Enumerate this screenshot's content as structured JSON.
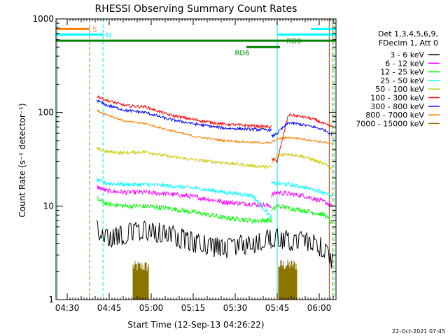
{
  "chart_data": {
    "type": "line",
    "title": "RHESSI Observing Summary Count Rates",
    "xlabel": "Start Time (12-Sep-13 04:26:22)",
    "ylabel": "Count Rate (s⁻¹ detector⁻¹)",
    "yscale": "log",
    "ylim": [
      1,
      1000
    ],
    "xlim_minutes_after_0426": [
      0,
      100
    ],
    "x_ticks": [
      "04:30",
      "04:45",
      "05:00",
      "05:15",
      "05:30",
      "05:45",
      "06:00"
    ],
    "y_ticks": [
      "1",
      "10",
      "100",
      "1000"
    ],
    "footer": "22-Oct-2021 07:45",
    "legend": {
      "header_line1": "Det 1,3,4,5,6,9,",
      "header_line2": "FDecim 1, Att 0",
      "placement": "right",
      "entries": [
        {
          "label": "3 - 6 keV",
          "color": "#000000"
        },
        {
          "label": "6 - 12 keV",
          "color": "#ff00ff"
        },
        {
          "label": "12 - 25 keV",
          "color": "#00ff00"
        },
        {
          "label": "25 - 50 keV",
          "color": "#00ffff"
        },
        {
          "label": "50 - 100 keV",
          "color": "#c8c800"
        },
        {
          "label": "100 - 300 keV",
          "color": "#ff0000"
        },
        {
          "label": "300 - 800 keV",
          "color": "#0000ff"
        },
        {
          "label": "800 - 7000 keV",
          "color": "#ff7f00"
        },
        {
          "label": "7000 - 15000 keV",
          "color": "#8b7500"
        }
      ]
    },
    "series": [
      {
        "name": "3 - 6 keV",
        "color": "#000000",
        "noise": 0.18,
        "segments": [
          {
            "t": [
              14.5,
              18,
              25,
              32,
              40,
              50,
              60,
              70,
              77
            ],
            "v": [
              6,
              4.5,
              5,
              5.5,
              5,
              4,
              3.5,
              4,
              4.5
            ]
          },
          {
            "t": [
              77,
              79,
              83,
              88,
              92,
              96,
              98.7
            ],
            "v": [
              4.5,
              4.5,
              4.2,
              4.2,
              4,
              3.5,
              2.5
            ]
          }
        ]
      },
      {
        "name": "6 - 12 keV",
        "color": "#ff00ff",
        "noise": 0.06,
        "segments": [
          {
            "t": [
              14.5,
              18,
              25,
              32,
              40,
              50,
              60,
              70,
              77
            ],
            "v": [
              16,
              14.5,
              14,
              14,
              13.5,
              12.5,
              11,
              10.5,
              10
            ]
          },
          {
            "t": [
              77,
              79,
              83,
              88,
              92,
              96,
              98.7
            ],
            "v": [
              13,
              14,
              13.5,
              13,
              12,
              11,
              10
            ]
          }
        ]
      },
      {
        "name": "12 - 25 keV",
        "color": "#00ff00",
        "noise": 0.06,
        "segments": [
          {
            "t": [
              14.5,
              18,
              25,
              32,
              40,
              50,
              60,
              70,
              77
            ],
            "v": [
              12,
              10.5,
              10,
              10,
              9.5,
              8.5,
              7.5,
              7,
              7
            ]
          },
          {
            "t": [
              77,
              79,
              83,
              88,
              92,
              96,
              98.7
            ],
            "v": [
              9,
              10,
              9.5,
              9,
              8.5,
              8,
              6.5
            ]
          }
        ]
      },
      {
        "name": "25 - 50 keV",
        "color": "#00ffff",
        "noise": 0.05,
        "segments": [
          {
            "t": [
              14.5,
              18,
              25,
              32,
              40,
              50,
              60,
              70,
              77
            ],
            "v": [
              19,
              17.5,
              17,
              17,
              16.5,
              15.5,
              14,
              13,
              7.5
            ]
          },
          {
            "t": [
              77,
              79,
              83,
              88,
              92,
              96,
              98.7
            ],
            "v": [
              17.5,
              17.5,
              17,
              16,
              15,
              14,
              12.5
            ]
          }
        ]
      },
      {
        "name": "50 - 100 keV",
        "color": "#c8c800",
        "noise": 0.04,
        "segments": [
          {
            "t": [
              14.5,
              18,
              25,
              32,
              40,
              50,
              60,
              70,
              77
            ],
            "v": [
              41,
              38,
              37,
              38,
              34,
              31,
              29,
              27,
              26
            ]
          },
          {
            "t": [
              77,
              79,
              83,
              88,
              92,
              96,
              98.7
            ],
            "v": [
              28,
              35,
              36,
              34,
              31,
              28,
              25
            ]
          }
        ]
      },
      {
        "name": "100 - 300 keV",
        "color": "#ff0000",
        "noise": 0.035,
        "segments": [
          {
            "t": [
              14.5,
              18,
              25,
              32,
              40,
              50,
              60,
              70,
              77
            ],
            "v": [
              150,
              135,
              118,
              115,
              95,
              83,
              75,
              72,
              70
            ]
          },
          {
            "t": [
              77,
              79,
              83,
              88,
              92,
              96,
              98.7
            ],
            "v": [
              32,
              30,
              95,
              90,
              85,
              75,
              70
            ]
          }
        ]
      },
      {
        "name": "300 - 800 keV",
        "color": "#0000ff",
        "noise": 0.035,
        "segments": [
          {
            "t": [
              14.5,
              18,
              25,
              32,
              40,
              50,
              60,
              70,
              77
            ],
            "v": [
              135,
              120,
              105,
              100,
              85,
              75,
              68,
              66,
              65
            ]
          },
          {
            "t": [
              77,
              79,
              83,
              88,
              92,
              96,
              98.7
            ],
            "v": [
              55,
              60,
              78,
              74,
              70,
              65,
              58
            ]
          }
        ]
      },
      {
        "name": "800 - 7000 keV",
        "color": "#ff7f00",
        "noise": 0.025,
        "segments": [
          {
            "t": [
              14.5,
              18,
              25,
              32,
              40,
              50,
              60,
              70,
              77
            ],
            "v": [
              105,
              95,
              80,
              76,
              65,
              55,
              50,
              48,
              47
            ]
          },
          {
            "t": [
              77,
              79,
              83,
              88,
              92,
              96,
              98.7
            ],
            "v": [
              48,
              52,
              54,
              52,
              50,
              48,
              45
            ]
          }
        ]
      }
    ],
    "spikes_7000_15000": [
      {
        "t_start": 27.5,
        "t_end": 33,
        "v_top": 2.6
      },
      {
        "t_start": 79.5,
        "t_end": 86,
        "v_top": 2.7
      }
    ],
    "flags": [
      {
        "label": "S",
        "color": "#ff7f00",
        "t_start": 0,
        "t_end": 12.0,
        "v": 780
      },
      {
        "label": "N",
        "color": "#00ffff",
        "t_start": 0,
        "t_end": 16.8,
        "v": 680
      },
      {
        "label": "",
        "color": "#00ffff",
        "t_start": 79,
        "t_end": 100,
        "v": 680
      },
      {
        "label": "",
        "color": "#00ffff",
        "t_start": 91,
        "t_end": 100,
        "v": 780
      },
      {
        "label": "RD0",
        "color": "#008000",
        "t_start": 0,
        "t_end": 100,
        "v": 585
      },
      {
        "label": "RD6",
        "color": "#008000",
        "t_start": 68,
        "t_end": 80,
        "v": 500
      }
    ],
    "vertical_markers": [
      {
        "t": 0.5,
        "color": "#00ffff",
        "style": "solid"
      },
      {
        "t": 12.0,
        "color": "#ff7f00",
        "style": "dashed"
      },
      {
        "t": 16.8,
        "color": "#00ffff",
        "style": "dashed"
      },
      {
        "t": 79.0,
        "color": "#00ffff",
        "style": "solid"
      },
      {
        "t": 97.6,
        "color": "#8b7500",
        "style": "solid"
      },
      {
        "t": 98.8,
        "color": "#ff7f00",
        "style": "dashed"
      },
      {
        "t": 99.3,
        "color": "#00ffff",
        "style": "dashed"
      }
    ]
  }
}
